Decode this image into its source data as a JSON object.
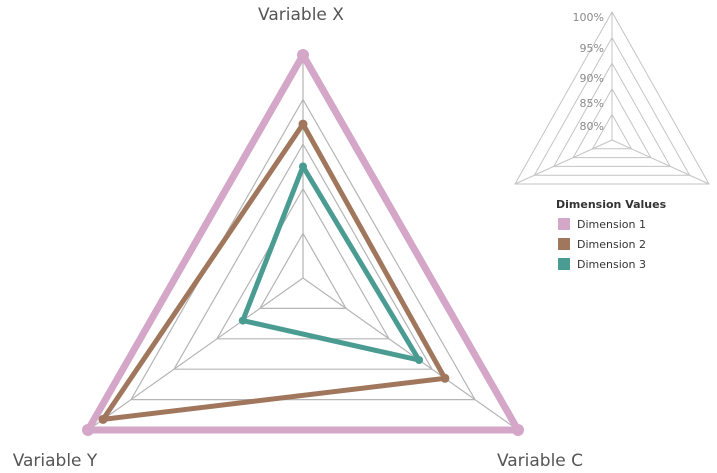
{
  "chart_data": {
    "type": "radar",
    "axes": [
      "Variable X",
      "Variable C",
      "Variable Y"
    ],
    "rings": [
      0.2,
      0.4,
      0.6,
      0.8,
      1.0
    ],
    "scale_labels": [
      "100%",
      "95%",
      "90%",
      "85%",
      "80%"
    ],
    "legend_title": "Dimension Values",
    "series": [
      {
        "name": "Dimension 1",
        "color": "#d4a6c8",
        "values": {
          "Variable X": 1.0,
          "Variable C": 1.0,
          "Variable Y": 1.0
        }
      },
      {
        "name": "Dimension 2",
        "color": "#a0765c",
        "values": {
          "Variable X": 0.69,
          "Variable C": 0.66,
          "Variable Y": 0.93
        }
      },
      {
        "name": "Dimension 3",
        "color": "#4a9b91",
        "values": {
          "Variable X": 0.5,
          "Variable C": 0.54,
          "Variable Y": 0.28
        }
      }
    ],
    "grid": true,
    "legend_position": "right"
  }
}
